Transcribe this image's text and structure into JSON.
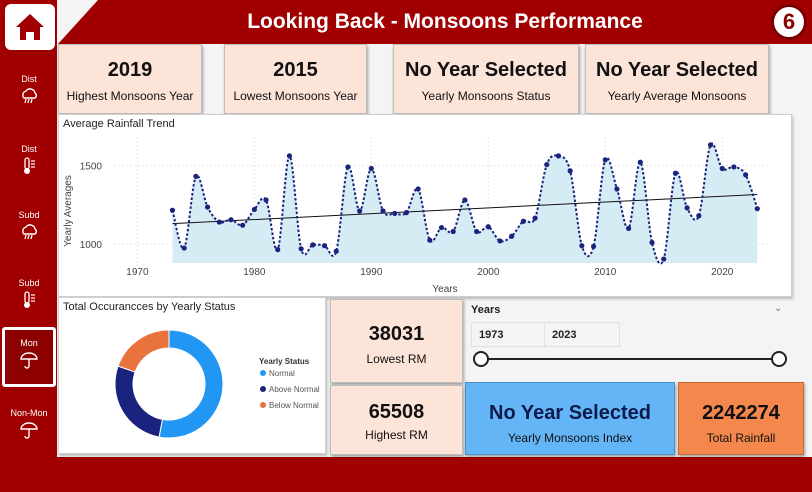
{
  "header": {
    "title": "Looking Back - Monsoons Performance",
    "page_number": "6"
  },
  "sidebar": {
    "items": [
      {
        "label": "Dist",
        "icon": "rain-cloud-icon"
      },
      {
        "label": "Dist",
        "icon": "thermometer-icon"
      },
      {
        "label": "Subd",
        "icon": "rain-cloud-icon"
      },
      {
        "label": "Subd",
        "icon": "thermometer-icon"
      },
      {
        "label": "Mon",
        "icon": "umbrella-icon",
        "active": true
      },
      {
        "label": "Non-Mon",
        "icon": "umbrella-icon"
      }
    ]
  },
  "kpis": {
    "highest_year": {
      "value": "2019",
      "label": "Highest Monsoons Year"
    },
    "lowest_year": {
      "value": "2015",
      "label": "Lowest Monsoons Year"
    },
    "yearly_status": {
      "value": "No Year Selected",
      "label": "Yearly Monsoons Status"
    },
    "yearly_average": {
      "value": "No Year Selected",
      "label": "Yearly Average Monsoons"
    },
    "lowest_rm": {
      "value": "38031",
      "label": "Lowest RM"
    },
    "highest_rm": {
      "value": "65508",
      "label": "Highest RM"
    },
    "monsoons_index": {
      "value": "No Year Selected",
      "label": "Yearly Monsoons Index"
    },
    "total_rainfall": {
      "value": "2242274",
      "label": "Total Rainfall"
    }
  },
  "colors": {
    "brand_red": "#a00000",
    "card_peach": "#fde4d8",
    "index_blue": "#64b5f6",
    "total_orange": "#f4874b",
    "line_navy": "#1a237e",
    "area_fill": "#d6ecf5"
  },
  "chart_data": [
    {
      "type": "line",
      "title": "Average Rainfall Trend",
      "xlabel": "Years",
      "ylabel": "Yearly Averages",
      "xlim": [
        1968,
        2024
      ],
      "ylim": [
        880,
        1680
      ],
      "xticks": [
        1970,
        1980,
        1990,
        2000,
        2010,
        2020
      ],
      "yticks": [
        1000,
        1500
      ],
      "grid": true,
      "trendline": {
        "from": [
          1973,
          1130
        ],
        "to": [
          2023,
          1315
        ]
      },
      "x": [
        1973,
        1974,
        1975,
        1976,
        1977,
        1978,
        1979,
        1980,
        1981,
        1982,
        1983,
        1984,
        1985,
        1986,
        1987,
        1988,
        1989,
        1990,
        1991,
        1992,
        1993,
        1994,
        1995,
        1996,
        1997,
        1998,
        1999,
        2000,
        2001,
        2002,
        2003,
        2004,
        2005,
        2006,
        2007,
        2008,
        2009,
        2010,
        2011,
        2012,
        2013,
        2014,
        2015,
        2016,
        2017,
        2018,
        2019,
        2020,
        2021,
        2022,
        2023
      ],
      "values": [
        1215,
        975,
        1430,
        1235,
        1140,
        1155,
        1120,
        1220,
        1280,
        965,
        1560,
        970,
        995,
        990,
        955,
        1490,
        1210,
        1480,
        1210,
        1195,
        1200,
        1350,
        1025,
        1105,
        1080,
        1280,
        1080,
        1110,
        1020,
        1050,
        1145,
        1165,
        1505,
        1560,
        1465,
        990,
        985,
        1535,
        1350,
        1100,
        1520,
        1010,
        905,
        1450,
        1230,
        1180,
        1630,
        1480,
        1490,
        1440,
        1225
      ]
    },
    {
      "type": "pie",
      "title": "Total Occurancces by Yearly Status",
      "legend_title": "Yearly Status",
      "legend_position": "right",
      "labels": [
        "Normal",
        "Above Normal",
        "Below Normal"
      ],
      "values": [
        27,
        14,
        10
      ],
      "colors": [
        "#2196f3",
        "#1a237e",
        "#e8733c"
      ]
    }
  ],
  "slicer": {
    "title": "Years",
    "start": "1973",
    "end": "2023"
  }
}
